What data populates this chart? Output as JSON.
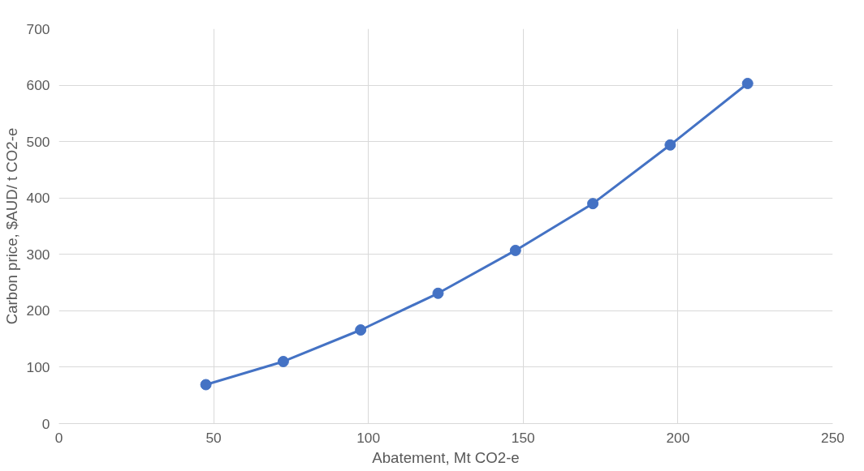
{
  "chart_data": {
    "type": "line",
    "xlabel": "Abatement, Mt CO2-e",
    "ylabel": "Carbon price, $AUD/ t CO2-e",
    "x": [
      47.5,
      72.5,
      97.5,
      122.5,
      147.5,
      172.5,
      197.5,
      222.5
    ],
    "series": [
      {
        "color": "#4472c4",
        "values": [
          69,
          110,
          166,
          231,
          307,
          390,
          494,
          603
        ]
      }
    ],
    "xlim": [
      0,
      250
    ],
    "xticks": [
      0,
      50,
      100,
      150,
      200,
      250
    ],
    "ylim": [
      0,
      700
    ],
    "yticks": [
      0,
      100,
      200,
      300,
      400,
      500,
      600,
      700
    ],
    "grid": true,
    "marker": "circle",
    "line_style": "solid"
  }
}
